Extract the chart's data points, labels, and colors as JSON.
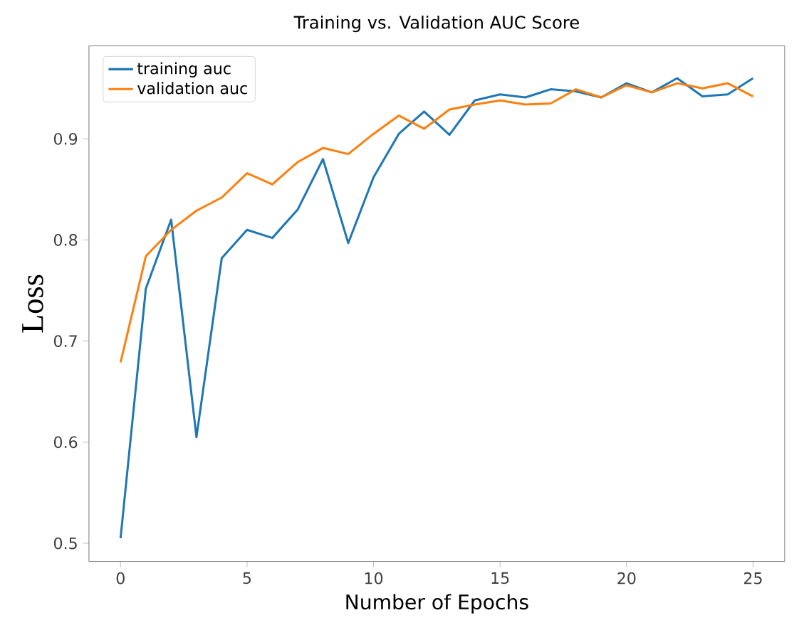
{
  "chart_data": {
    "type": "line",
    "title": "Training vs. Validation AUC Score",
    "xlabel": "Number of Epochs",
    "ylabel": "Loss",
    "x": [
      0,
      1,
      2,
      3,
      4,
      5,
      6,
      7,
      8,
      9,
      10,
      11,
      12,
      13,
      14,
      15,
      16,
      17,
      18,
      19,
      20,
      21,
      22,
      23,
      24,
      25
    ],
    "series": [
      {
        "name": "training auc",
        "color": "#1f77b4",
        "values": [
          0.505,
          0.752,
          0.82,
          0.605,
          0.782,
          0.81,
          0.802,
          0.83,
          0.88,
          0.797,
          0.862,
          0.905,
          0.927,
          0.904,
          0.938,
          0.944,
          0.941,
          0.949,
          0.947,
          0.941,
          0.955,
          0.946,
          0.96,
          0.942,
          0.944,
          0.96
        ]
      },
      {
        "name": "validation auc",
        "color": "#ff7f0e",
        "values": [
          0.679,
          0.784,
          0.81,
          0.829,
          0.842,
          0.866,
          0.855,
          0.877,
          0.891,
          0.885,
          0.905,
          0.923,
          0.91,
          0.929,
          0.934,
          0.938,
          0.934,
          0.935,
          0.949,
          0.941,
          0.953,
          0.946,
          0.955,
          0.95,
          0.955,
          0.942
        ]
      }
    ],
    "xlim": [
      -1.25,
      26.25
    ],
    "ylim": [
      0.482,
      0.992
    ],
    "xticks": [
      0,
      5,
      10,
      15,
      20,
      25
    ],
    "yticks": [
      0.5,
      0.6,
      0.7,
      0.8,
      0.9
    ],
    "legend": "top left",
    "grid": false,
    "marker": "none",
    "line_style": "solid"
  }
}
